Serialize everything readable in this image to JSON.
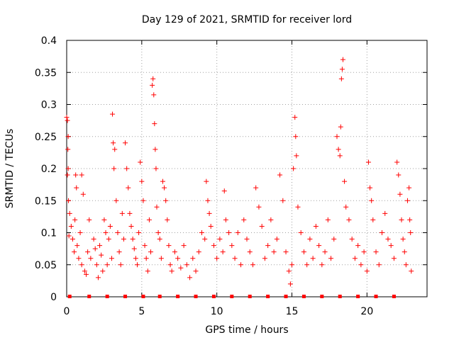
{
  "chart_data": {
    "type": "scatter",
    "title": "Day 129 of 2021, SRMTID for receiver lord",
    "xlabel": "GPS time / hours",
    "ylabel": "SRMTID / TECUs",
    "xlim": [
      0,
      24
    ],
    "ylim": [
      0,
      0.4
    ],
    "x_ticks": [
      0,
      5,
      10,
      15,
      20
    ],
    "x_tick_labels": [
      "0",
      "5",
      "10",
      "15",
      "20"
    ],
    "y_ticks": [
      0,
      0.05,
      0.1,
      0.15,
      0.2,
      0.25,
      0.3,
      0.35,
      0.4
    ],
    "y_tick_labels": [
      "0",
      "0.05",
      "0.1",
      "0.15",
      "0.2",
      "0.25",
      "0.3",
      "0.35",
      "0.4"
    ],
    "grid": true,
    "marker": "+",
    "color": "#ff0000",
    "series": [
      {
        "name": "SRMTID",
        "points": [
          [
            0.0,
            0.28
          ],
          [
            0.05,
            0.275
          ],
          [
            0.1,
            0.25
          ],
          [
            0.08,
            0.23
          ],
          [
            0.1,
            0.2
          ],
          [
            0.05,
            0.19
          ],
          [
            0.12,
            0.15
          ],
          [
            0.2,
            0.13
          ],
          [
            0.15,
            0.095
          ],
          [
            0.3,
            0.11
          ],
          [
            0.4,
            0.09
          ],
          [
            0.5,
            0.07
          ],
          [
            0.55,
            0.12
          ],
          [
            0.6,
            0.19
          ],
          [
            0.65,
            0.17
          ],
          [
            0.7,
            0.08
          ],
          [
            0.8,
            0.06
          ],
          [
            0.9,
            0.1
          ],
          [
            1.0,
            0.05
          ],
          [
            1.1,
            0.16
          ],
          [
            1.0,
            0.19
          ],
          [
            1.2,
            0.04
          ],
          [
            1.3,
            0.035
          ],
          [
            1.4,
            0.07
          ],
          [
            1.5,
            0.12
          ],
          [
            1.6,
            0.06
          ],
          [
            1.8,
            0.09
          ],
          [
            1.9,
            0.075
          ],
          [
            2.0,
            0.05
          ],
          [
            2.1,
            0.03
          ],
          [
            2.2,
            0.08
          ],
          [
            2.3,
            0.065
          ],
          [
            2.4,
            0.04
          ],
          [
            2.5,
            0.12
          ],
          [
            2.6,
            0.1
          ],
          [
            2.7,
            0.05
          ],
          [
            2.8,
            0.09
          ],
          [
            2.9,
            0.11
          ],
          [
            3.0,
            0.06
          ],
          [
            3.05,
            0.285
          ],
          [
            3.1,
            0.24
          ],
          [
            3.15,
            0.2
          ],
          [
            3.2,
            0.23
          ],
          [
            3.3,
            0.15
          ],
          [
            3.4,
            0.1
          ],
          [
            3.5,
            0.07
          ],
          [
            3.6,
            0.05
          ],
          [
            3.7,
            0.13
          ],
          [
            3.8,
            0.09
          ],
          [
            3.9,
            0.24
          ],
          [
            4.0,
            0.2
          ],
          [
            4.1,
            0.17
          ],
          [
            4.2,
            0.13
          ],
          [
            4.3,
            0.11
          ],
          [
            4.4,
            0.09
          ],
          [
            4.5,
            0.075
          ],
          [
            4.6,
            0.06
          ],
          [
            4.7,
            0.05
          ],
          [
            4.8,
            0.1
          ],
          [
            4.9,
            0.21
          ],
          [
            5.0,
            0.18
          ],
          [
            5.1,
            0.15
          ],
          [
            5.2,
            0.08
          ],
          [
            5.3,
            0.06
          ],
          [
            5.4,
            0.04
          ],
          [
            5.5,
            0.12
          ],
          [
            5.6,
            0.07
          ],
          [
            5.7,
            0.33
          ],
          [
            5.75,
            0.34
          ],
          [
            5.8,
            0.315
          ],
          [
            5.85,
            0.27
          ],
          [
            5.9,
            0.23
          ],
          [
            5.95,
            0.2
          ],
          [
            6.0,
            0.14
          ],
          [
            6.1,
            0.1
          ],
          [
            6.2,
            0.09
          ],
          [
            6.3,
            0.06
          ],
          [
            6.4,
            0.18
          ],
          [
            6.5,
            0.17
          ],
          [
            6.6,
            0.15
          ],
          [
            6.7,
            0.12
          ],
          [
            6.8,
            0.08
          ],
          [
            6.9,
            0.05
          ],
          [
            7.0,
            0.04
          ],
          [
            7.2,
            0.07
          ],
          [
            7.4,
            0.06
          ],
          [
            7.6,
            0.045
          ],
          [
            7.8,
            0.08
          ],
          [
            8.0,
            0.05
          ],
          [
            8.2,
            0.03
          ],
          [
            8.4,
            0.06
          ],
          [
            8.6,
            0.04
          ],
          [
            8.8,
            0.07
          ],
          [
            9.0,
            0.1
          ],
          [
            9.2,
            0.09
          ],
          [
            9.3,
            0.18
          ],
          [
            9.4,
            0.15
          ],
          [
            9.5,
            0.13
          ],
          [
            9.6,
            0.11
          ],
          [
            9.8,
            0.08
          ],
          [
            10.0,
            0.06
          ],
          [
            10.2,
            0.09
          ],
          [
            10.4,
            0.07
          ],
          [
            10.5,
            0.165
          ],
          [
            10.6,
            0.12
          ],
          [
            10.8,
            0.1
          ],
          [
            11.0,
            0.08
          ],
          [
            11.2,
            0.06
          ],
          [
            11.4,
            0.1
          ],
          [
            11.6,
            0.05
          ],
          [
            11.8,
            0.12
          ],
          [
            12.0,
            0.09
          ],
          [
            12.2,
            0.07
          ],
          [
            12.4,
            0.05
          ],
          [
            12.6,
            0.17
          ],
          [
            12.8,
            0.14
          ],
          [
            13.0,
            0.11
          ],
          [
            13.2,
            0.06
          ],
          [
            13.4,
            0.08
          ],
          [
            13.6,
            0.12
          ],
          [
            13.8,
            0.07
          ],
          [
            14.0,
            0.09
          ],
          [
            14.2,
            0.19
          ],
          [
            14.4,
            0.15
          ],
          [
            14.6,
            0.07
          ],
          [
            14.8,
            0.04
          ],
          [
            14.9,
            0.02
          ],
          [
            15.0,
            0.05
          ],
          [
            15.1,
            0.2
          ],
          [
            15.2,
            0.28
          ],
          [
            15.25,
            0.25
          ],
          [
            15.3,
            0.22
          ],
          [
            15.4,
            0.14
          ],
          [
            15.6,
            0.1
          ],
          [
            15.8,
            0.07
          ],
          [
            16.0,
            0.05
          ],
          [
            16.2,
            0.09
          ],
          [
            16.4,
            0.06
          ],
          [
            16.6,
            0.11
          ],
          [
            16.8,
            0.08
          ],
          [
            17.0,
            0.05
          ],
          [
            17.2,
            0.07
          ],
          [
            17.4,
            0.12
          ],
          [
            17.6,
            0.06
          ],
          [
            17.8,
            0.09
          ],
          [
            18.0,
            0.25
          ],
          [
            18.1,
            0.23
          ],
          [
            18.2,
            0.22
          ],
          [
            18.25,
            0.265
          ],
          [
            18.3,
            0.34
          ],
          [
            18.35,
            0.355
          ],
          [
            18.4,
            0.37
          ],
          [
            18.5,
            0.18
          ],
          [
            18.6,
            0.14
          ],
          [
            18.8,
            0.12
          ],
          [
            19.0,
            0.09
          ],
          [
            19.2,
            0.06
          ],
          [
            19.4,
            0.08
          ],
          [
            19.6,
            0.05
          ],
          [
            19.8,
            0.07
          ],
          [
            20.0,
            0.04
          ],
          [
            20.1,
            0.21
          ],
          [
            20.2,
            0.17
          ],
          [
            20.3,
            0.15
          ],
          [
            20.4,
            0.12
          ],
          [
            20.6,
            0.07
          ],
          [
            20.8,
            0.05
          ],
          [
            21.0,
            0.1
          ],
          [
            21.2,
            0.13
          ],
          [
            21.4,
            0.09
          ],
          [
            21.6,
            0.08
          ],
          [
            21.8,
            0.06
          ],
          [
            22.0,
            0.21
          ],
          [
            22.1,
            0.19
          ],
          [
            22.2,
            0.16
          ],
          [
            22.3,
            0.12
          ],
          [
            22.4,
            0.09
          ],
          [
            22.5,
            0.07
          ],
          [
            22.6,
            0.05
          ],
          [
            22.7,
            0.15
          ],
          [
            22.8,
            0.17
          ],
          [
            22.85,
            0.12
          ],
          [
            22.9,
            0.1
          ],
          [
            22.95,
            0.04
          ]
        ]
      }
    ],
    "baseline_markers_x": [
      0.2,
      1.5,
      2.7,
      3.9,
      5.1,
      6.2,
      7.4,
      8.6,
      9.8,
      11.0,
      12.2,
      13.4,
      14.6,
      15.8,
      17.0,
      18.2,
      19.4,
      20.6,
      21.8
    ]
  }
}
